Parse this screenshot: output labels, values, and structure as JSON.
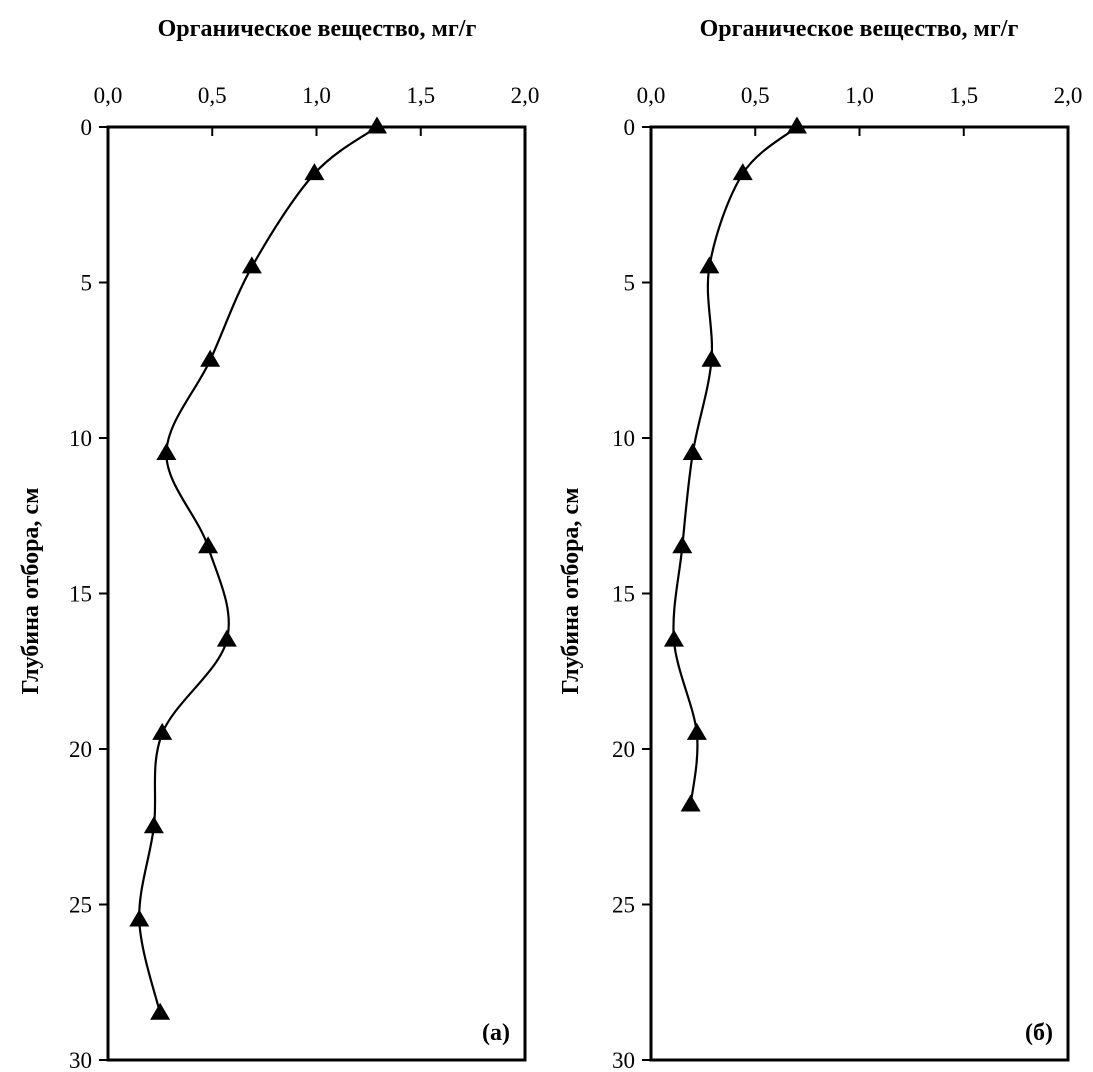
{
  "chart_data": [
    {
      "type": "line",
      "orientation": "depth-profile",
      "title": "Органическое вещество, мг/г",
      "ylabel": "Глубина отбора, см",
      "panel_label": "(а)",
      "xlim": [
        0,
        2
      ],
      "ylim": [
        0,
        30
      ],
      "x_ticks": [
        "0,0",
        "0,5",
        "1,0",
        "1,5",
        "2,0"
      ],
      "y_ticks": [
        "0",
        "5",
        "10",
        "15",
        "20",
        "25",
        "30"
      ],
      "marker": "triangle",
      "color": "#000000",
      "series": [
        {
          "x": [
            1.29,
            0.99,
            0.69,
            0.49,
            0.28,
            0.48,
            0.57,
            0.26,
            0.22,
            0.15,
            0.25
          ],
          "y": [
            0,
            1.5,
            4.5,
            7.5,
            10.5,
            13.5,
            16.5,
            19.5,
            22.5,
            25.5,
            28.5
          ]
        }
      ]
    },
    {
      "type": "line",
      "orientation": "depth-profile",
      "title": "Органическое вещество, мг/г",
      "ylabel": "Глубина отбора, см",
      "panel_label": "(б)",
      "xlim": [
        0,
        2
      ],
      "ylim": [
        0,
        30
      ],
      "x_ticks": [
        "0,0",
        "0,5",
        "1,0",
        "1,5",
        "2,0"
      ],
      "y_ticks": [
        "0",
        "5",
        "10",
        "15",
        "20",
        "25",
        "30"
      ],
      "marker": "triangle",
      "color": "#000000",
      "series": [
        {
          "x": [
            0.7,
            0.44,
            0.28,
            0.29,
            0.2,
            0.15,
            0.11,
            0.22,
            0.19
          ],
          "y": [
            0,
            1.5,
            4.5,
            7.5,
            10.5,
            13.5,
            16.5,
            19.5,
            21.8
          ]
        }
      ]
    }
  ]
}
